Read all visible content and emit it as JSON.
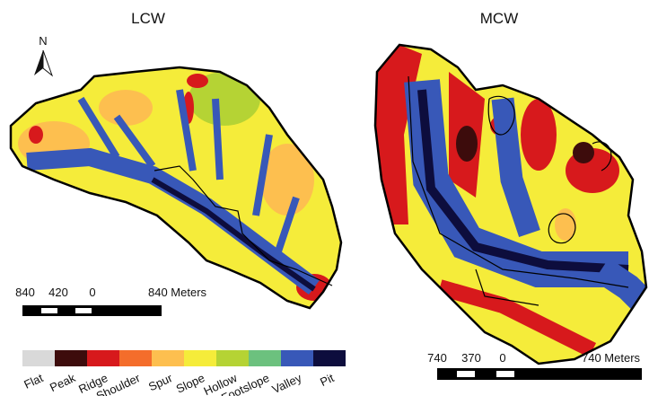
{
  "maps": [
    {
      "title": "LCW",
      "scale_bar": {
        "labels": [
          "840",
          "420",
          "0",
          "840 Meters"
        ]
      }
    },
    {
      "title": "MCW",
      "scale_bar": {
        "labels": [
          "740",
          "370",
          "0",
          "740 Meters"
        ]
      }
    }
  ],
  "north_arrow": {
    "label": "N"
  },
  "legend": {
    "items": [
      {
        "label": "Flat",
        "color": "#d9d9d9"
      },
      {
        "label": "Peak",
        "color": "#3d0c0c"
      },
      {
        "label": "Ridge",
        "color": "#d7191c"
      },
      {
        "label": "Shoulder",
        "color": "#f46d2b"
      },
      {
        "label": "Spur",
        "color": "#fdbf4f"
      },
      {
        "label": "Slope",
        "color": "#f5ec3a"
      },
      {
        "label": "Hollow",
        "color": "#b5d334"
      },
      {
        "label": "Footslope",
        "color": "#6cc17e"
      },
      {
        "label": "Valley",
        "color": "#3858b8"
      },
      {
        "label": "Pit",
        "color": "#0d0d3d"
      }
    ]
  }
}
